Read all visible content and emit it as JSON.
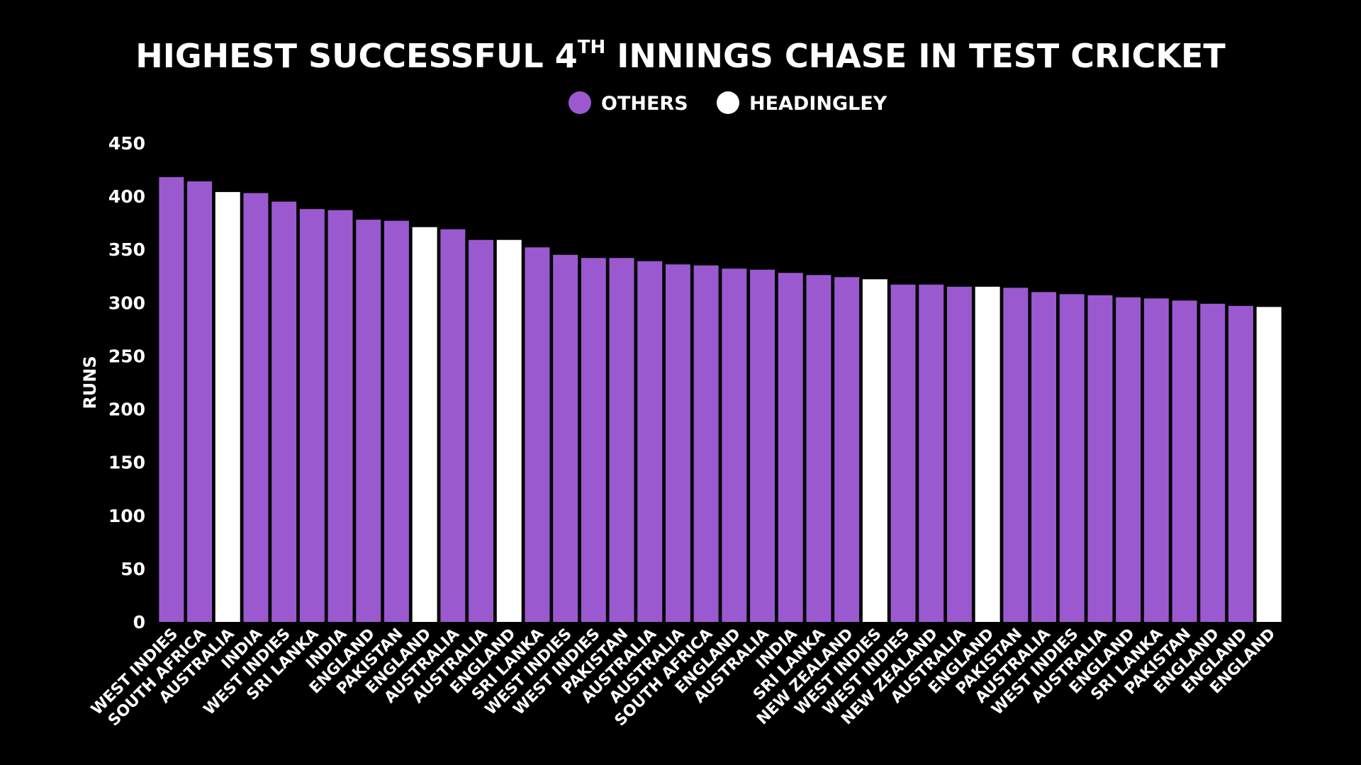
{
  "chart_data": {
    "type": "bar",
    "title": {
      "main": "HIGHEST SUCCESSFUL 4",
      "superscript": "TH",
      "rest": " INNINGS CHASE IN TEST CRICKET"
    },
    "xlabel": "",
    "ylabel": "RUNS",
    "ylim": [
      0,
      450
    ],
    "yticks": [
      0,
      50,
      100,
      150,
      200,
      250,
      300,
      350,
      400,
      450
    ],
    "grid": false,
    "legend_position": "top-center",
    "series": [
      {
        "name": "OTHERS",
        "color": "#9B59D0"
      },
      {
        "name": "HEADINGLEY",
        "color": "#FFFFFF"
      }
    ],
    "categories": [
      "WEST INDIES",
      "SOUTH AFRICA",
      "AUSTRALIA",
      "INDIA",
      "WEST INDIES",
      "SRI LANKA",
      "INDIA",
      "ENGLAND",
      "PAKISTAN",
      "ENGLAND",
      "AUSTRALIA",
      "AUSTRALIA",
      "ENGLAND",
      "SRI LANKA",
      "WEST INDIES",
      "WEST INDIES",
      "PAKISTAN",
      "AUSTRALIA",
      "AUSTRALIA",
      "SOUTH AFRICA",
      "ENGLAND",
      "AUSTRALIA",
      "INDIA",
      "SRI LANKA",
      "NEW ZEALAND",
      "WEST INDIES",
      "WEST INDIES",
      "NEW ZEALAND",
      "AUSTRALIA",
      "ENGLAND",
      "PAKISTAN",
      "AUSTRALIA",
      "WEST INDIES",
      "AUSTRALIA",
      "ENGLAND",
      "SRI LANKA",
      "PAKISTAN",
      "ENGLAND",
      "ENGLAND",
      "ENGLAND"
    ],
    "values": [
      418,
      414,
      404,
      403,
      395,
      388,
      387,
      378,
      377,
      371,
      369,
      359,
      359,
      352,
      345,
      342,
      342,
      339,
      336,
      335,
      332,
      331,
      328,
      326,
      324,
      322,
      317,
      317,
      315,
      315,
      314,
      310,
      308,
      307,
      305,
      304,
      302,
      299,
      297,
      296
    ],
    "series_index": [
      0,
      0,
      1,
      0,
      0,
      0,
      0,
      0,
      0,
      1,
      0,
      0,
      1,
      0,
      0,
      0,
      0,
      0,
      0,
      0,
      0,
      0,
      0,
      0,
      0,
      1,
      0,
      0,
      0,
      1,
      0,
      0,
      0,
      0,
      0,
      0,
      0,
      0,
      0,
      1
    ]
  }
}
